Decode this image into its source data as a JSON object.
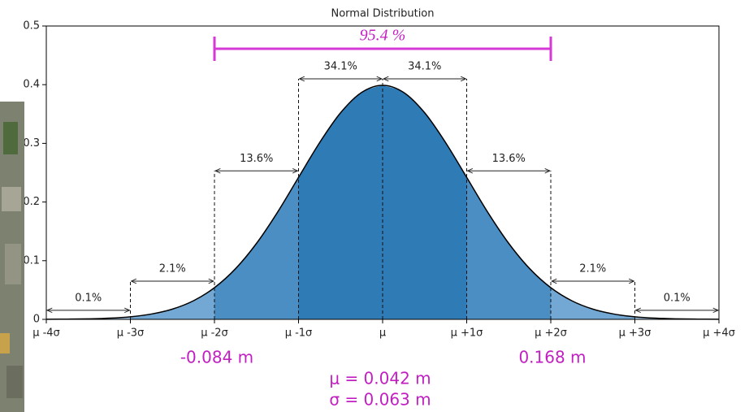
{
  "chart_data": {
    "type": "area",
    "title": "Normal Distribution",
    "x": [
      -4,
      -3.75,
      -3.5,
      -3.25,
      -3,
      -2.75,
      -2.5,
      -2.25,
      -2,
      -1.75,
      -1.5,
      -1.25,
      -1,
      -0.75,
      -0.5,
      -0.25,
      0,
      0.25,
      0.5,
      0.75,
      1,
      1.25,
      1.5,
      1.75,
      2,
      2.25,
      2.5,
      2.75,
      3,
      3.25,
      3.5,
      3.75,
      4
    ],
    "series": [
      {
        "color": "#000000",
        "values": [
          0.0001,
          0.0004,
          0.0009,
          0.002,
          0.0044,
          0.0091,
          0.0175,
          0.0317,
          0.054,
          0.0863,
          0.1295,
          0.1826,
          0.242,
          0.3011,
          0.3521,
          0.3867,
          0.3989,
          0.3867,
          0.3521,
          0.3011,
          0.242,
          0.1826,
          0.1295,
          0.0863,
          0.054,
          0.0317,
          0.0175,
          0.0091,
          0.0044,
          0.002,
          0.0009,
          0.0004,
          0.0001
        ]
      }
    ],
    "xlim": [
      -4,
      4
    ],
    "xticks": [
      {
        "value": -4,
        "label": "μ -4σ"
      },
      {
        "value": -3,
        "label": "μ -3σ"
      },
      {
        "value": -2,
        "label": "μ -2σ"
      },
      {
        "value": -1,
        "label": "μ -1σ"
      },
      {
        "value": 0,
        "label": "μ"
      },
      {
        "value": 1,
        "label": "μ +1σ"
      },
      {
        "value": 2,
        "label": "μ +2σ"
      },
      {
        "value": 3,
        "label": "μ +3σ"
      },
      {
        "value": 4,
        "label": "μ +4σ"
      }
    ],
    "ylim": [
      0,
      0.5
    ],
    "yticks": [
      0,
      0.1,
      0.2,
      0.3,
      0.4,
      0.5
    ],
    "intervals": [
      {
        "from": -4,
        "to": -3,
        "label": "0.1%",
        "color": "#a9cbe6"
      },
      {
        "from": -3,
        "to": -2,
        "label": "2.1%",
        "color": "#72a8d3"
      },
      {
        "from": -2,
        "to": -1,
        "label": "13.6%",
        "color": "#4b8ec3"
      },
      {
        "from": -1,
        "to": 0,
        "label": "34.1%",
        "color": "#2f7bb6"
      },
      {
        "from": 0,
        "to": 1,
        "label": "34.1%",
        "color": "#2f7bb6"
      },
      {
        "from": 1,
        "to": 2,
        "label": "13.6%",
        "color": "#4b8ec3"
      },
      {
        "from": 2,
        "to": 3,
        "label": "2.1%",
        "color": "#72a8d3"
      },
      {
        "from": 3,
        "to": 4,
        "label": "0.1%",
        "color": "#a9cbe6"
      }
    ],
    "bracket": {
      "from": -2,
      "to": 2,
      "label": "95.4 %",
      "color": "#d63ad6"
    },
    "annotations": {
      "left": "-0.084 m",
      "right": "0.168 m",
      "mu": "μ = 0.042 m",
      "sigma": "σ = 0.063 m"
    }
  }
}
